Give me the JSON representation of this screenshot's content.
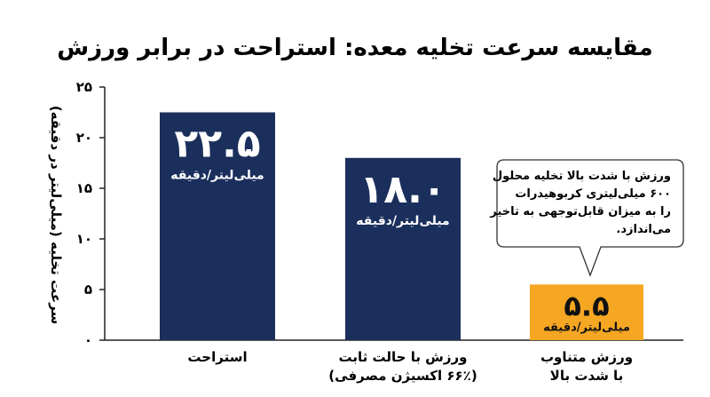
{
  "chart_data": {
    "type": "bar",
    "title": "مقایسه سرعت تخلیه معده: استراحت در برابر ورزش",
    "ylabel": "سرعت تخلیه (میلی‌لیتر در دقیقه)",
    "xlabel": "",
    "ylim": [
      0,
      25
    ],
    "yticks": [
      0,
      5,
      10,
      15,
      20,
      25
    ],
    "ytick_labels": [
      "۰",
      "۵",
      "۱۰",
      "۱۵",
      "۲۰",
      "۲۵"
    ],
    "grid": false,
    "categories": [
      [
        "استراحت"
      ],
      [
        "ورزش با حالت ثابت",
        "(۶۶٪ اکسیژن مصرفی)"
      ],
      [
        "ورزش متناوب",
        "با شدت بالا"
      ]
    ],
    "values": [
      22.5,
      18.0,
      5.5
    ],
    "value_labels": [
      "۲۲.۵",
      "۱۸.۰",
      "۵.۵"
    ],
    "unit_label": "میلی‌لیتر/دقیقه",
    "colors": [
      "#1b2f5c",
      "#1b2f5c",
      "#f5a623"
    ],
    "label_colors": [
      "#ffffff",
      "#ffffff",
      "#111111"
    ],
    "annotation": {
      "target_index": 2,
      "lines": [
        "ورزش با شدت بالا تخلیه محلول",
        "۶۰۰ میلی‌لیتری کربوهیدرات",
        "را به میزان قابل‌توجهی به تاخیر",
        "می‌اندازد."
      ]
    }
  }
}
